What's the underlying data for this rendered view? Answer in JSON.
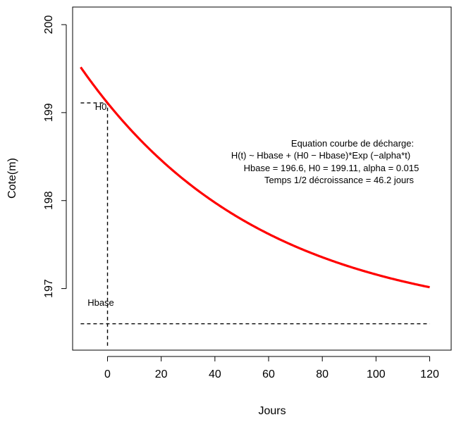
{
  "chart_data": {
    "type": "line",
    "title": "",
    "xlabel": "Jours",
    "ylabel": "Cote(m)",
    "xlim": [
      -13,
      128
    ],
    "ylim": [
      196.3,
      200.2
    ],
    "x_ticks": [
      0,
      20,
      40,
      60,
      80,
      100,
      120
    ],
    "y_ticks": [
      197,
      198,
      199,
      200
    ],
    "grid": false,
    "legend": "none",
    "curve": {
      "color": "#ff0000",
      "x_range": [
        -10,
        120
      ],
      "model": {
        "hbase": 196.6,
        "h0": 199.11,
        "alpha": 0.015
      }
    },
    "reference_lines": {
      "h0_horizontal": {
        "y": 199.11,
        "x_from": -10,
        "x_to": 0,
        "label": "H0"
      },
      "vertical_at_zero": {
        "x": 0,
        "y_from": 196.35,
        "y_to": 199.11
      },
      "hbase_horizontal": {
        "y": 196.6,
        "x_from": -10,
        "x_to": 120,
        "label": "Hbase"
      }
    },
    "annotations": [
      "Equation courbe de décharge:",
      "H(t) ~ Hbase + (H0 − Hbase)*Exp (−alpha*t)",
      "Hbase = 196.6, H0 = 199.11, alpha = 0.015",
      "Temps 1/2 décroissance = 46.2 jours"
    ]
  }
}
